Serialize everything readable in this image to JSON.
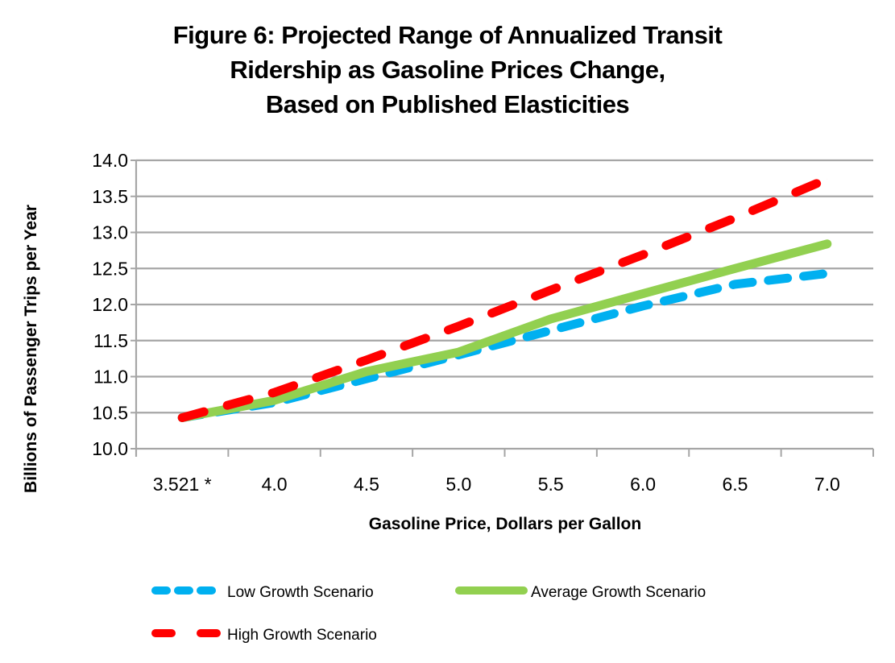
{
  "chart_data": {
    "type": "line",
    "title": "Figure 6: Projected Range of Annualized Transit Ridership as Gasoline Prices Change, Based on Published Elasticities",
    "title_lines": [
      "Figure 6: Projected Range of Annualized Transit",
      "Ridership as Gasoline Prices Change,",
      "Based on Published Elasticities"
    ],
    "xlabel": "Gasoline Price, Dollars per Gallon",
    "ylabel": "Billions of Passenger Trips per Year",
    "categories": [
      "3.521 *",
      "4.0",
      "4.5",
      "5.0",
      "5.5",
      "6.0",
      "6.5",
      "7.0"
    ],
    "ylim": [
      10.0,
      14.0
    ],
    "yticks": [
      "10.0",
      "10.5",
      "11.0",
      "11.5",
      "12.0",
      "12.5",
      "13.0",
      "13.5",
      "14.0"
    ],
    "ytick_values": [
      10.0,
      10.5,
      11.0,
      11.5,
      12.0,
      12.5,
      13.0,
      13.5,
      14.0
    ],
    "grid": "horizontal",
    "legend_position": "bottom",
    "series": [
      {
        "name": "Low Growth Scenario",
        "color": "#00b0f0",
        "style": "dashed",
        "values": [
          10.43,
          10.64,
          10.97,
          11.3,
          11.64,
          11.98,
          12.28,
          12.43
        ]
      },
      {
        "name": "Average Growth Scenario",
        "color": "#92d050",
        "style": "solid",
        "values": [
          10.43,
          10.67,
          11.07,
          11.34,
          11.8,
          12.15,
          12.5,
          12.84
        ]
      },
      {
        "name": "High Growth Scenario",
        "color": "#ff0000",
        "style": "dashed",
        "values": [
          10.43,
          10.78,
          11.23,
          11.7,
          12.2,
          12.69,
          13.2,
          13.74
        ]
      }
    ]
  }
}
